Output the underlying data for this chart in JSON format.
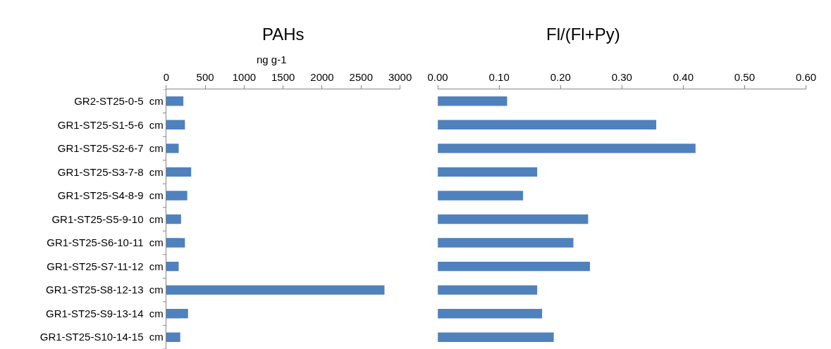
{
  "chart_data": [
    {
      "type": "bar",
      "orientation": "horizontal",
      "title": "PAHs",
      "xlabel": "ng g-1",
      "categories": [
        "GR2-ST25-0-5  cm",
        "GR1-ST25-S1-5-6  cm",
        "GR1-ST25-S2-6-7  cm",
        "GR1-ST25-S3-7-8  cm",
        "GR1-ST25-S4-8-9  cm",
        "GR1-ST25-S5-9-10  cm",
        "GR1-ST25-S6-10-11  cm",
        "GR1-ST25-S7-11-12  cm",
        "GR1-ST25-S8-12-13  cm",
        "GR1-ST25-S9-13-14  cm",
        "GR1-ST25-S10-14-15  cm"
      ],
      "values": [
        220,
        240,
        160,
        320,
        270,
        190,
        240,
        160,
        2800,
        280,
        180
      ],
      "color": "#4f81bd",
      "xlim": [
        0,
        3000
      ],
      "xticks": [
        0,
        500,
        1000,
        1500,
        2000,
        2500,
        3000
      ]
    },
    {
      "type": "bar",
      "orientation": "horizontal",
      "title": "Fl/(Fl+Py)",
      "categories": [
        null,
        null,
        null,
        null,
        null,
        null,
        null,
        null,
        null,
        null,
        null
      ],
      "values": [
        0.113,
        0.356,
        0.42,
        0.162,
        0.139,
        0.245,
        0.221,
        0.248,
        0.162,
        0.17,
        0.189
      ],
      "color": "#4f81bd",
      "xlim": [
        0,
        0.6
      ],
      "xticks": [
        {
          "value": 0,
          "label": "0.00"
        },
        {
          "value": 0.1,
          "label": "0.10"
        },
        {
          "value": 0.2,
          "label": "0.20"
        },
        {
          "value": 0.3,
          "label": "0.30"
        },
        {
          "value": 0.4,
          "label": "0.40"
        },
        {
          "value": 0.5,
          "label": "0.50"
        },
        {
          "value": 0.6,
          "label": "0.60"
        }
      ],
      "tick_labels": "x"
    }
  ]
}
